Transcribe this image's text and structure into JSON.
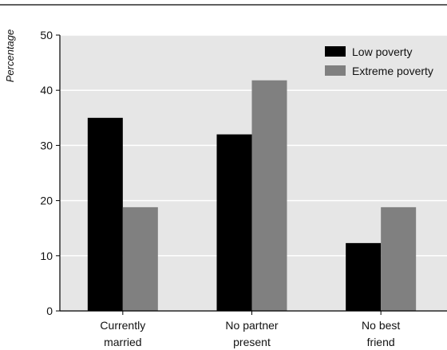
{
  "chart_data": {
    "type": "bar",
    "ylabel": "Percentage",
    "xlabel": "",
    "ylim": [
      0,
      50
    ],
    "yticks": [
      0,
      10,
      20,
      30,
      40,
      50
    ],
    "grid": true,
    "legend_position": "top-right",
    "categories": [
      [
        "Currently",
        "married"
      ],
      [
        "No partner",
        "present"
      ],
      [
        "No best",
        "friend"
      ]
    ],
    "series": [
      {
        "name": "Low poverty",
        "color": "#000000",
        "values": [
          35,
          32,
          12.3
        ]
      },
      {
        "name": "Extreme poverty",
        "color": "#808080",
        "values": [
          18.8,
          41.8,
          18.8
        ]
      }
    ],
    "colors": {
      "plot_background": "#e6e6e6",
      "gridline": "#ffffff"
    }
  }
}
